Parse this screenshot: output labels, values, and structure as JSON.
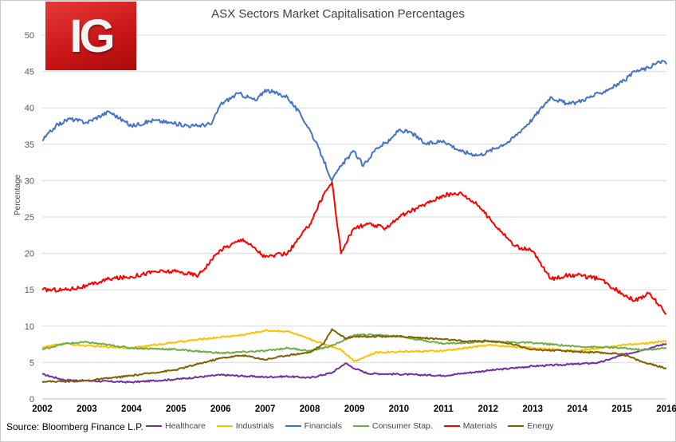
{
  "chart_data": {
    "type": "line",
    "title": "ASX Sectors Market Capitalisation Percentages",
    "xlabel": "",
    "ylabel": "Percentage",
    "xlim": [
      2002,
      2016
    ],
    "ylim": [
      0,
      50
    ],
    "x_ticks": [
      "2002",
      "2003",
      "2004",
      "2005",
      "2006",
      "2007",
      "2008",
      "2009",
      "2010",
      "2011",
      "2012",
      "2013",
      "2014",
      "2015",
      "2016"
    ],
    "y_ticks": [
      "0",
      "5",
      "10",
      "15",
      "20",
      "25",
      "30",
      "35",
      "40",
      "45",
      "50"
    ],
    "grid": "horizontal",
    "legend_position": "bottom",
    "series": [
      {
        "name": "Healthcare",
        "color": "#7030a0",
        "x": [
          2002,
          2002.5,
          2003,
          2004,
          2005,
          2006,
          2007,
          2007.5,
          2008,
          2008.5,
          2008.8,
          2009,
          2009.3,
          2010,
          2011,
          2012,
          2013,
          2014,
          2014.5,
          2015,
          2015.5,
          2016
        ],
        "y": [
          3.4,
          2.6,
          2.5,
          2.3,
          2.7,
          3.3,
          3.0,
          3.1,
          2.9,
          3.6,
          4.9,
          4.2,
          3.5,
          3.4,
          3.2,
          3.9,
          4.5,
          4.8,
          5.0,
          6.0,
          6.8,
          7.6
        ]
      },
      {
        "name": "Industrials",
        "color": "#ffc000",
        "x": [
          2002,
          2002.5,
          2003,
          2004,
          2005,
          2006,
          2006.5,
          2007,
          2007.5,
          2008,
          2008.3,
          2008.7,
          2009,
          2009.5,
          2010,
          2011,
          2012,
          2013,
          2014,
          2015,
          2015.5,
          2016
        ],
        "y": [
          7.1,
          7.6,
          7.3,
          7.0,
          7.8,
          8.5,
          8.8,
          9.4,
          9.3,
          8.2,
          7.6,
          6.8,
          5.2,
          6.4,
          6.5,
          6.6,
          7.4,
          7.0,
          6.6,
          7.4,
          7.6,
          8.0
        ]
      },
      {
        "name": "Financials",
        "color": "#4472c4",
        "x": [
          2002,
          2002.3,
          2002.6,
          2003,
          2003.5,
          2004,
          2004.5,
          2005,
          2005.4,
          2005.8,
          2006,
          2006.4,
          2006.8,
          2007,
          2007.5,
          2007.8,
          2008,
          2008.3,
          2008.5,
          2008.7,
          2008.9,
          2009,
          2009.2,
          2009.5,
          2009.8,
          2010,
          2010.3,
          2010.6,
          2011,
          2011.4,
          2011.8,
          2012,
          2012.5,
          2013,
          2013.4,
          2013.8,
          2014,
          2014.5,
          2015,
          2015.3,
          2015.6,
          2015.9,
          2016
        ],
        "y": [
          35.5,
          37.5,
          38.5,
          38.0,
          39.5,
          37.5,
          38.3,
          37.8,
          37.5,
          37.8,
          40.5,
          42.0,
          41.0,
          42.5,
          41.5,
          39.0,
          37.0,
          33.0,
          30.0,
          32.0,
          33.5,
          34.0,
          32.0,
          34.5,
          35.5,
          37.0,
          36.5,
          35.0,
          35.5,
          34.0,
          33.5,
          34.0,
          35.5,
          38.5,
          41.5,
          40.5,
          40.8,
          42.0,
          43.5,
          45.0,
          45.5,
          46.5,
          46.0
        ]
      },
      {
        "name": "Consumer Stap.",
        "color": "#70ad47",
        "x": [
          2002,
          2002.5,
          2003,
          2004,
          2005,
          2006,
          2007,
          2007.5,
          2008,
          2008.5,
          2009,
          2009.5,
          2010,
          2011,
          2012,
          2013,
          2014,
          2015,
          2015.5,
          2016
        ],
        "y": [
          6.8,
          7.6,
          7.8,
          7.0,
          6.8,
          6.3,
          6.6,
          7.0,
          6.6,
          7.3,
          8.8,
          8.8,
          8.6,
          7.6,
          7.9,
          7.7,
          7.2,
          7.0,
          6.7,
          7.0
        ]
      },
      {
        "name": "Materials",
        "color": "#ff0000",
        "x": [
          2002,
          2002.5,
          2003,
          2003.5,
          2004,
          2004.5,
          2005,
          2005.5,
          2006,
          2006.5,
          2007,
          2007.5,
          2008,
          2008.3,
          2008.5,
          2008.7,
          2008.9,
          2009,
          2009.3,
          2009.7,
          2010,
          2010.5,
          2011,
          2011.4,
          2011.8,
          2012,
          2012.3,
          2012.6,
          2013,
          2013.4,
          2013.8,
          2014,
          2014.5,
          2015,
          2015.3,
          2015.6,
          2015.9,
          2016
        ],
        "y": [
          15.0,
          15.0,
          15.5,
          16.5,
          16.8,
          17.5,
          17.5,
          17.0,
          20.5,
          22.0,
          19.5,
          20.0,
          24.0,
          28.0,
          29.8,
          20.0,
          22.5,
          23.5,
          24.0,
          23.5,
          25.0,
          26.5,
          28.0,
          28.3,
          26.5,
          25.0,
          23.0,
          21.0,
          20.3,
          16.5,
          17.0,
          17.0,
          16.5,
          14.5,
          13.5,
          14.5,
          12.5,
          11.7
        ]
      },
      {
        "name": "Energy",
        "color": "#806000",
        "x": [
          2002,
          2002.5,
          2003,
          2004,
          2005,
          2005.5,
          2006,
          2006.5,
          2007,
          2007.5,
          2008,
          2008.3,
          2008.5,
          2008.8,
          2009,
          2009.5,
          2010,
          2011,
          2011.5,
          2012,
          2012.5,
          2013,
          2014,
          2015,
          2015.5,
          2016
        ],
        "y": [
          2.4,
          2.4,
          2.5,
          3.2,
          4.0,
          4.8,
          5.6,
          6.0,
          5.4,
          6.0,
          6.4,
          7.5,
          9.6,
          8.3,
          8.6,
          8.6,
          8.6,
          8.2,
          7.9,
          8.0,
          7.6,
          6.8,
          6.5,
          6.2,
          5.0,
          4.2
        ]
      }
    ]
  },
  "source": "Source: Bloomberg Finance L.P.",
  "logo_text": "IG"
}
